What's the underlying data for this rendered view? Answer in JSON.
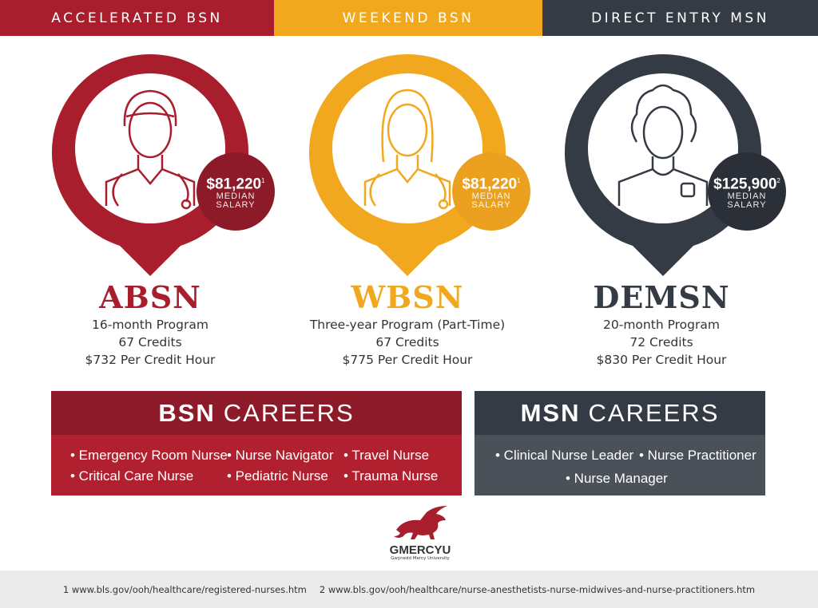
{
  "bands": [
    "ACCELERATED BSN",
    "WEEKEND BSN",
    "DIRECT ENTRY MSN"
  ],
  "colors": {
    "red": "#a81e2d",
    "red_dark": "#8c1a28",
    "yellow": "#f1a81f",
    "yellow_badge": "#eba020",
    "dark": "#353b45",
    "dark_badge": "#2b3038",
    "gray_body": "#4b5159"
  },
  "programs": [
    {
      "icon": "male-nurse-icon",
      "salary": "$81,220",
      "ref": "1",
      "salary_label_1": "MEDIAN",
      "salary_label_2": "SALARY",
      "name": "ABSN",
      "lines": [
        "16-month Program",
        "67 Credits",
        "$732 Per Credit Hour"
      ]
    },
    {
      "icon": "female-nurse-icon",
      "salary": "$81,220",
      "ref": "1",
      "salary_label_1": "MEDIAN",
      "salary_label_2": "SALARY",
      "name": "WBSN",
      "lines": [
        "Three-year Program (Part-Time)",
        "67 Credits",
        "$775 Per Credit Hour"
      ]
    },
    {
      "icon": "curly-hair-nurse-icon",
      "salary": "$125,900",
      "ref": "2",
      "salary_label_1": "MEDIAN",
      "salary_label_2": "SALARY",
      "name": "DEMSN",
      "lines": [
        "20-month Program",
        "72 Credits",
        "$830 Per Credit Hour"
      ]
    }
  ],
  "bsn_careers": {
    "bold": "BSN",
    "rest": "CAREERS",
    "items": [
      "• Emergency Room Nurse",
      "• Critical Care Nurse",
      "• Nurse Navigator",
      "• Pediatric Nurse",
      "• Travel Nurse",
      "• Trauma Nurse"
    ]
  },
  "msn_careers": {
    "bold": "MSN",
    "rest": "CAREERS",
    "items": [
      "• Clinical Nurse Leader",
      "• Nurse Practitioner",
      "• Nurse Manager"
    ]
  },
  "logo": {
    "name": "GMERCYU",
    "subtitle": "Gwynedd Mercy University"
  },
  "footnotes": [
    "1  www.bls.gov/ooh/healthcare/registered-nurses.htm",
    "2  www.bls.gov/ooh/healthcare/nurse-anesthetists-nurse-midwives-and-nurse-practitioners.htm"
  ]
}
